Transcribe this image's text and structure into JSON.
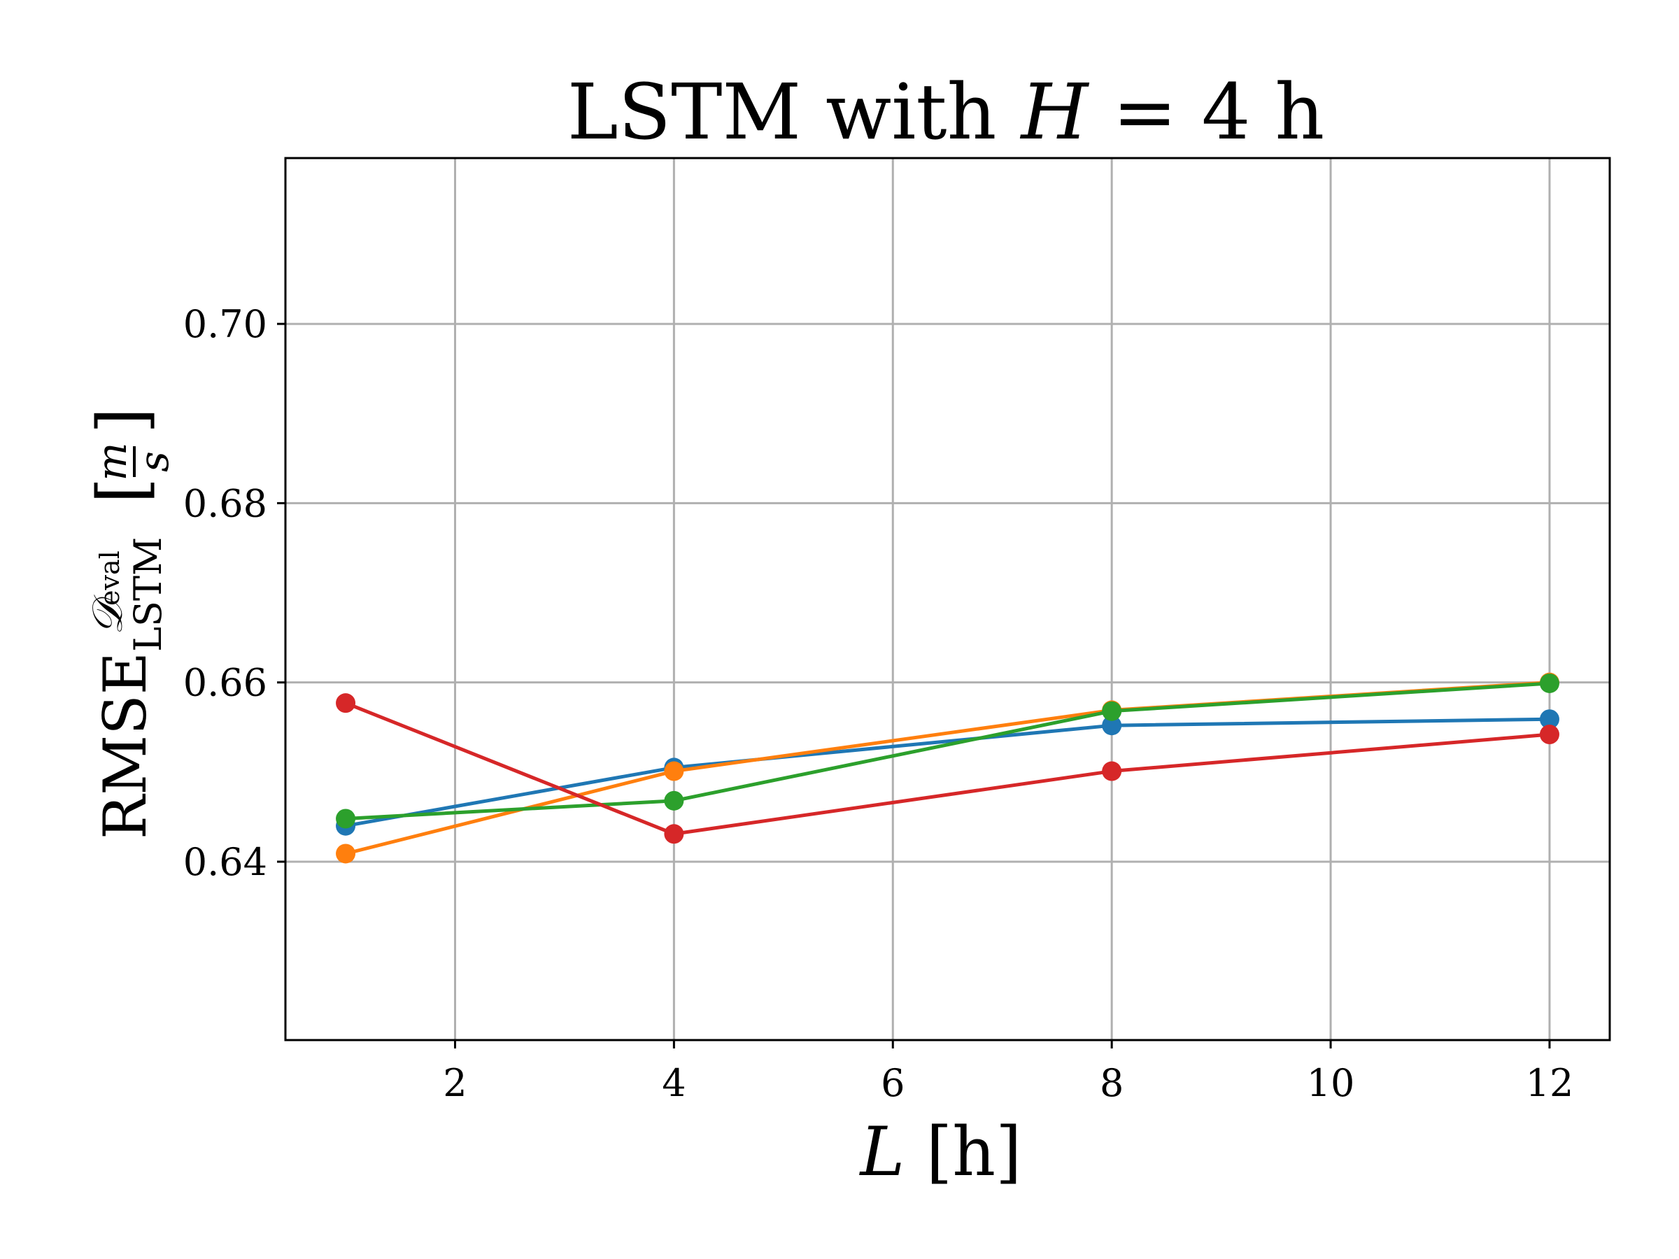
{
  "chart_data": {
    "type": "line",
    "title_parts": {
      "prefix": "LSTM with ",
      "var": "H",
      "suffix": " = 4 h"
    },
    "xlabel_parts": {
      "var": "L",
      "unit": " [h]"
    },
    "ylabel_parts": {
      "base": "RMSE",
      "sup": "𝒟",
      "sup_sub": "eval",
      "sub": "LSTM",
      "unit_num": "m",
      "unit_den": "s"
    },
    "xlim": [
      0.45,
      12.55
    ],
    "ylim": [
      0.6201,
      0.7185
    ],
    "xticks": [
      2,
      4,
      6,
      8,
      10,
      12
    ],
    "xtick_labels": [
      "2",
      "4",
      "6",
      "8",
      "10",
      "12"
    ],
    "yticks": [
      0.64,
      0.66,
      0.68,
      0.7
    ],
    "ytick_labels": [
      "0.64",
      "0.66",
      "0.68",
      "0.70"
    ],
    "grid": true,
    "x": [
      1,
      4,
      8,
      12
    ],
    "series": [
      {
        "color": "#1f77b4",
        "values": [
          0.644,
          0.6505,
          0.6552,
          0.6559
        ]
      },
      {
        "color": "#ff7f0e",
        "values": [
          0.6409,
          0.6501,
          0.6569,
          0.66
        ]
      },
      {
        "color": "#2ca02c",
        "values": [
          0.6448,
          0.6468,
          0.6568,
          0.6599
        ]
      },
      {
        "color": "#d62728",
        "values": [
          0.6577,
          0.6431,
          0.6501,
          0.6542
        ]
      }
    ]
  }
}
